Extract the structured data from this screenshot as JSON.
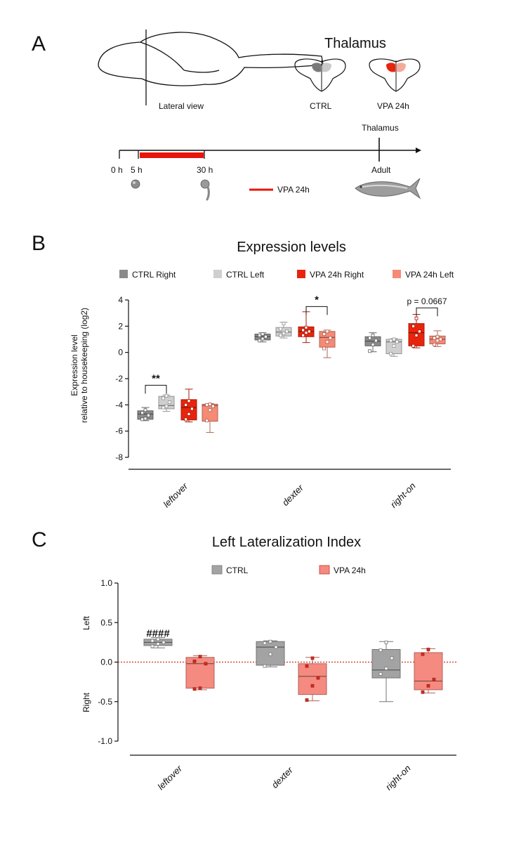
{
  "panels": {
    "a": "A",
    "b": "B",
    "c": "C"
  },
  "panel_a": {
    "thalamus_title": "Thalamus",
    "lateral_view_label": "Lateral view",
    "ctrl_label": "CTRL",
    "vpa_label": "VPA 24h",
    "timeline": {
      "thalamus_label": "Thalamus",
      "adult_label": "Adult",
      "t0": "0 h",
      "t5": "5 h",
      "t30": "30 h",
      "legend_label": "VPA 24h"
    }
  },
  "chart_data": [
    {
      "type": "box",
      "title": "Expression levels",
      "ylabel_line1": "Expression level",
      "ylabel_line2": "relative to housekeeping (log2)",
      "ylim": [
        -8,
        4
      ],
      "yticks": [
        4,
        2,
        0,
        -2,
        -4,
        -6,
        -8
      ],
      "categories": [
        "leftover",
        "dexter",
        "right-on"
      ],
      "legend": [
        {
          "name": "CTRL Right",
          "color": "#8a8a8a"
        },
        {
          "name": "CTRL Left",
          "color": "#cfcfcf"
        },
        {
          "name": "VPA 24h Right",
          "color": "#e8250c"
        },
        {
          "name": "VPA 24h Left",
          "color": "#f58a75"
        }
      ],
      "series": [
        {
          "name": "CTRL Right",
          "color": "#8a8a8a",
          "boxes": [
            {
              "min": -5.2,
              "q1": -5.1,
              "median": -4.7,
              "q3": -4.45,
              "max": -4.2,
              "points": [
                -5.1,
                -5.05,
                -4.8,
                -4.6,
                -4.4
              ]
            },
            {
              "min": 0.8,
              "q1": 0.95,
              "median": 1.2,
              "q3": 1.4,
              "max": 1.5,
              "points": [
                0.9,
                1.05,
                1.2,
                1.3,
                1.4
              ]
            },
            {
              "min": 0.05,
              "q1": 0.5,
              "median": 0.85,
              "q3": 1.2,
              "max": 1.5,
              "points": [
                0.1,
                0.6,
                0.9,
                1.1,
                1.3
              ]
            }
          ]
        },
        {
          "name": "CTRL Left",
          "color": "#cfcfcf",
          "boxes": [
            {
              "min": -4.5,
              "q1": -4.3,
              "median": -4.05,
              "q3": -3.35,
              "max": -3.25,
              "points": [
                -4.2,
                -4.1,
                -3.8,
                -3.5,
                -3.3
              ]
            },
            {
              "min": 1.1,
              "q1": 1.25,
              "median": 1.55,
              "q3": 1.9,
              "max": 2.3,
              "points": [
                1.3,
                1.45,
                1.6,
                1.8,
                2.2
              ]
            },
            {
              "min": -0.3,
              "q1": -0.1,
              "median": 0.8,
              "q3": 1.0,
              "max": 1.05,
              "points": [
                -0.1,
                0.5,
                0.8,
                0.9,
                1.0
              ]
            }
          ]
        },
        {
          "name": "VPA 24h Right",
          "color": "#e8250c",
          "boxes": [
            {
              "min": -5.3,
              "q1": -5.15,
              "median": -4.2,
              "q3": -3.6,
              "max": -2.8,
              "points": [
                -5.1,
                -4.7,
                -4.3,
                -4.0,
                -3.7
              ]
            },
            {
              "min": 0.75,
              "q1": 1.2,
              "median": 1.6,
              "q3": 1.95,
              "max": 3.1,
              "points": [
                1.3,
                1.5,
                1.6,
                1.7,
                1.9
              ]
            },
            {
              "min": 0.35,
              "q1": 0.5,
              "median": 1.5,
              "q3": 2.2,
              "max": 2.9,
              "points": [
                0.5,
                1.3,
                1.6,
                2.0,
                2.6
              ]
            }
          ]
        },
        {
          "name": "VPA 24h Left",
          "color": "#f58a75",
          "boxes": [
            {
              "min": -6.1,
              "q1": -5.25,
              "median": -4.05,
              "q3": -3.95,
              "max": -3.9,
              "points": [
                -5.2,
                -4.4,
                -4.1,
                -4.0,
                -3.95
              ]
            },
            {
              "min": -0.4,
              "q1": 0.4,
              "median": 1.15,
              "q3": 1.6,
              "max": 1.7,
              "points": [
                0.3,
                0.8,
                1.1,
                1.4,
                1.6
              ]
            },
            {
              "min": 0.45,
              "q1": 0.65,
              "median": 1.0,
              "q3": 1.25,
              "max": 1.65,
              "points": [
                0.6,
                0.9,
                1.0,
                1.1,
                1.2
              ]
            }
          ]
        }
      ],
      "annotations": [
        {
          "text": "**",
          "category": 0,
          "from": 0,
          "to": 1,
          "y": -2.5
        },
        {
          "text": "*",
          "category": 1,
          "from": 2,
          "to": 3,
          "y": 3.5
        },
        {
          "text": "p = 0.0667",
          "category": 2,
          "from": 2,
          "to": 3,
          "y": 3.4
        }
      ]
    },
    {
      "type": "box",
      "title": "Left Lateralization Index",
      "ylim": [
        -1.0,
        1.0
      ],
      "yticks": [
        "1.0",
        "0.5",
        "0.0",
        "-0.5",
        "-1.0"
      ],
      "side_labels": {
        "top": "Left",
        "bottom": "Right"
      },
      "reference_line": 0.0,
      "categories": [
        "leftover",
        "dexter",
        "right-on"
      ],
      "legend": [
        {
          "name": "CTRL",
          "color": "#a3a3a3"
        },
        {
          "name": "VPA 24h",
          "color": "#f58a80"
        }
      ],
      "series": [
        {
          "name": "CTRL",
          "color": "#a3a3a3",
          "boxes": [
            {
              "min": 0.18,
              "q1": 0.21,
              "median": 0.25,
              "q3": 0.29,
              "max": 0.31,
              "points": [
                0.2,
                0.23,
                0.25,
                0.27,
                0.29
              ]
            },
            {
              "min": -0.06,
              "q1": -0.04,
              "median": 0.19,
              "q3": 0.26,
              "max": 0.27,
              "points": [
                -0.05,
                0.1,
                0.19,
                0.24,
                0.26
              ]
            },
            {
              "min": -0.5,
              "q1": -0.2,
              "median": -0.1,
              "q3": 0.16,
              "max": 0.26,
              "points": [
                -0.15,
                -0.08,
                0.05,
                0.15,
                0.25
              ]
            }
          ]
        },
        {
          "name": "VPA 24h",
          "color": "#f58a80",
          "boxes": [
            {
              "min": -0.35,
              "q1": -0.33,
              "median": -0.02,
              "q3": 0.06,
              "max": 0.08,
              "points": [
                -0.34,
                -0.33,
                -0.02,
                0.01,
                0.07
              ]
            },
            {
              "min": -0.49,
              "q1": -0.41,
              "median": -0.18,
              "q3": -0.02,
              "max": 0.06,
              "points": [
                -0.48,
                -0.3,
                -0.2,
                -0.05,
                0.05
              ]
            },
            {
              "min": -0.39,
              "q1": -0.35,
              "median": -0.24,
              "q3": 0.12,
              "max": 0.17,
              "points": [
                -0.38,
                -0.3,
                -0.22,
                0.1,
                0.16
              ]
            }
          ]
        }
      ],
      "annotations": [
        {
          "text": "####",
          "category": 0,
          "series": 0,
          "y": 0.39
        }
      ]
    }
  ]
}
